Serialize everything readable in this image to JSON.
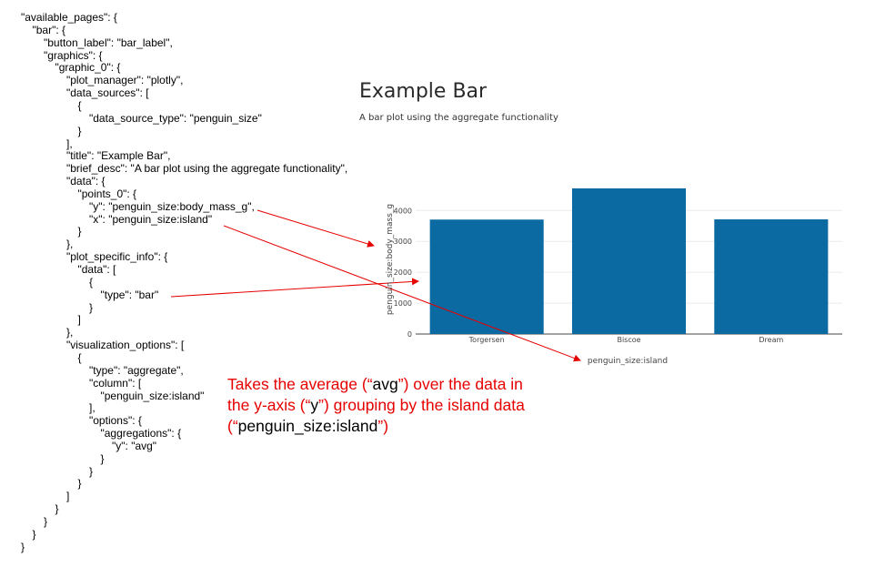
{
  "config_lines": [
    {
      "indent": 0,
      "text": "\"available_pages\": {"
    },
    {
      "indent": 1,
      "text": "\"bar\": {"
    },
    {
      "indent": 2,
      "text": "\"button_label\": \"bar_label\","
    },
    {
      "indent": 2,
      "text": "\"graphics\": {"
    },
    {
      "indent": 3,
      "text": "\"graphic_0\": {"
    },
    {
      "indent": 4,
      "text": "\"plot_manager\": \"plotly\","
    },
    {
      "indent": 4,
      "text": "\"data_sources\": ["
    },
    {
      "indent": 5,
      "text": "{"
    },
    {
      "indent": 6,
      "text": "\"data_source_type\": \"penguin_size\""
    },
    {
      "indent": 5,
      "text": "}"
    },
    {
      "indent": 4,
      "text": "],"
    },
    {
      "indent": 4,
      "text": "\"title\": \"Example Bar\","
    },
    {
      "indent": 4,
      "text": "\"brief_desc\": \"A bar plot using the aggregate functionality\","
    },
    {
      "indent": 4,
      "text": "\"data\": {"
    },
    {
      "indent": 5,
      "text": "\"points_0\": {"
    },
    {
      "indent": 6,
      "text": "\"y\": \"penguin_size:body_mass_g\","
    },
    {
      "indent": 6,
      "text": "\"x\": \"penguin_size:island\""
    },
    {
      "indent": 5,
      "text": "}"
    },
    {
      "indent": 4,
      "text": "},"
    },
    {
      "indent": 4,
      "text": "\"plot_specific_info\": {"
    },
    {
      "indent": 5,
      "text": "\"data\": ["
    },
    {
      "indent": 6,
      "text": "{"
    },
    {
      "indent": 7,
      "text": "\"type\": \"bar\""
    },
    {
      "indent": 6,
      "text": "}"
    },
    {
      "indent": 5,
      "text": "]"
    },
    {
      "indent": 4,
      "text": "},"
    },
    {
      "indent": 4,
      "text": "\"visualization_options\": ["
    },
    {
      "indent": 5,
      "text": "{"
    },
    {
      "indent": 6,
      "text": "\"type\": \"aggregate\","
    },
    {
      "indent": 6,
      "text": "\"column\": ["
    },
    {
      "indent": 7,
      "text": "\"penguin_size:island\""
    },
    {
      "indent": 6,
      "text": "],"
    },
    {
      "indent": 6,
      "text": "\"options\": {"
    },
    {
      "indent": 7,
      "text": "\"aggregations\": {"
    },
    {
      "indent": 8,
      "text": "\"y\": \"avg\""
    },
    {
      "indent": 7,
      "text": "}"
    },
    {
      "indent": 6,
      "text": "}"
    },
    {
      "indent": 5,
      "text": "}"
    },
    {
      "indent": 4,
      "text": "]"
    },
    {
      "indent": 3,
      "text": "}"
    },
    {
      "indent": 2,
      "text": "}"
    },
    {
      "indent": 1,
      "text": "}"
    },
    {
      "indent": 0,
      "text": "}"
    }
  ],
  "plot": {
    "title": "Example Bar",
    "description": "A bar plot using the aggregate functionality"
  },
  "chart_data": {
    "type": "bar",
    "title": "Example Bar",
    "subtitle": "A bar plot using the aggregate functionality",
    "categories": [
      "Torgersen",
      "Biscoe",
      "Dream"
    ],
    "values": [
      3706,
      4716,
      3713
    ],
    "xlabel": "penguin_size:island",
    "ylabel": "penguin_size:body_mass_g",
    "ylim": [
      0,
      4716
    ],
    "yticks": [
      0,
      1000,
      2000,
      3000,
      4000
    ],
    "grid": true,
    "bar_color": "#0a6aa1"
  },
  "annotation": {
    "part1": "Takes the average (“",
    "part2": "avg",
    "part3": "”) over the data in the y-axis (“",
    "part4": "y",
    "part5": "”) grouping by the island data (“",
    "part6": "penguin_size:island",
    "part7": "”)",
    "color": "#e60000"
  },
  "arrow_color": "#e60000"
}
